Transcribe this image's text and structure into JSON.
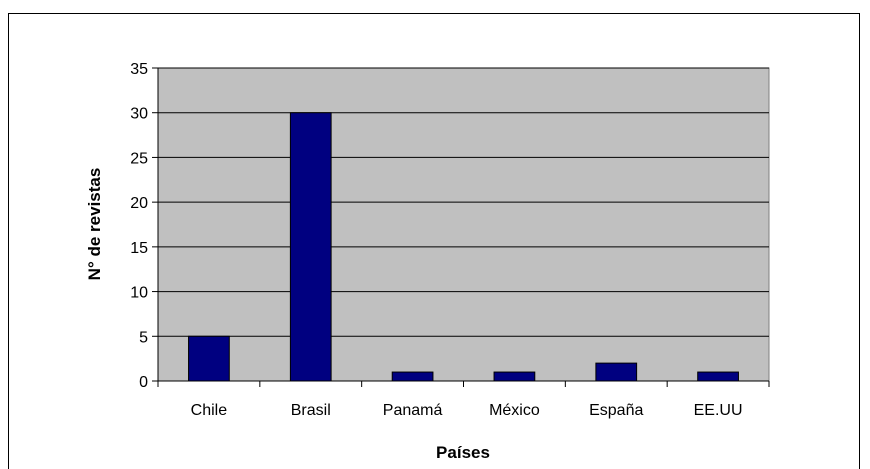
{
  "chart_data": {
    "type": "bar",
    "categories": [
      "Chile",
      "Brasil",
      "Panamá",
      "México",
      "España",
      "EE.UU"
    ],
    "values": [
      5,
      30,
      1,
      1,
      2,
      1
    ],
    "xlabel": "Países",
    "ylabel": "N° de revistas",
    "ylim": [
      0,
      35
    ],
    "yticks": [
      0,
      5,
      10,
      15,
      20,
      25,
      30,
      35
    ],
    "grid": true,
    "legend": "none",
    "colors": {
      "bar": "#000080",
      "plot_background": "#c0c0c0",
      "gridline": "#000000"
    }
  }
}
